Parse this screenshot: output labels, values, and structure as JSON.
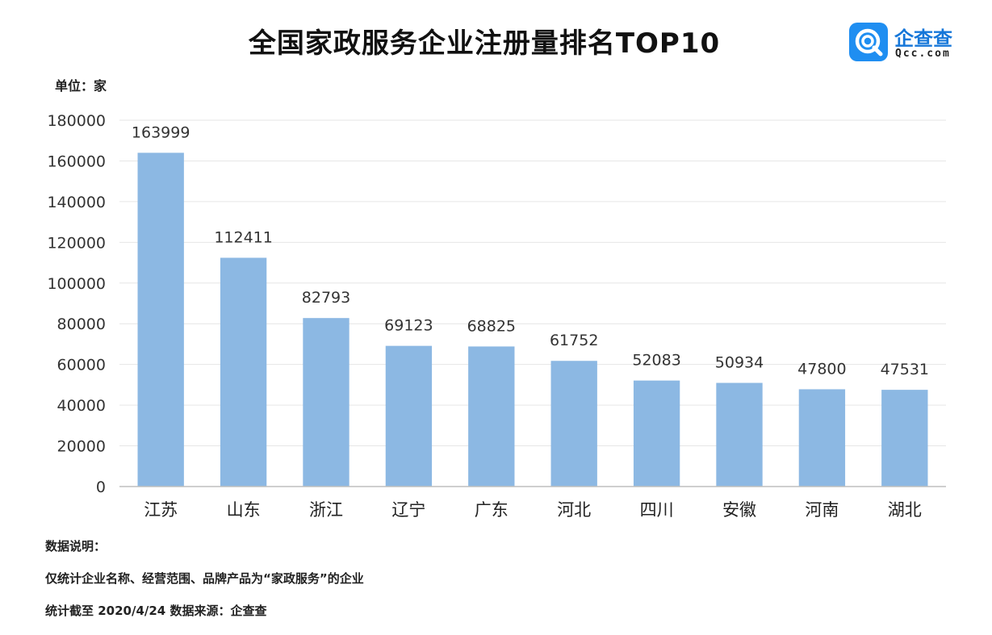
{
  "header": {
    "title": "全国家政服务企业注册量排名TOP10",
    "unit_label": "单位：家"
  },
  "logo": {
    "brand_cn": "企查查",
    "brand_en": "Qcc.com"
  },
  "colors": {
    "bar": "#8cb8e3",
    "grid": "#e6e6e6",
    "axis": "#bfbfbf",
    "logo_blue": "#1f8ef1"
  },
  "chart_data": {
    "type": "bar",
    "categories": [
      "江苏",
      "山东",
      "浙江",
      "辽宁",
      "广东",
      "河北",
      "四川",
      "安徽",
      "河南",
      "湖北"
    ],
    "values": [
      163999,
      112411,
      82793,
      69123,
      68825,
      61752,
      52083,
      50934,
      47800,
      47531
    ],
    "yticks": [
      0,
      20000,
      40000,
      60000,
      80000,
      100000,
      120000,
      140000,
      160000,
      180000
    ],
    "ylim": [
      0,
      180000
    ],
    "grid": true,
    "legend": "none",
    "title": "全国家政服务企业注册量排名TOP10",
    "xlabel": "",
    "ylabel": "单位：家"
  },
  "notes": {
    "heading": "数据说明：",
    "line1": "仅统计企业名称、经营范围、品牌产品为“家政服务”的企业",
    "line2": "统计截至 2020/4/24    数据来源：企查查"
  }
}
